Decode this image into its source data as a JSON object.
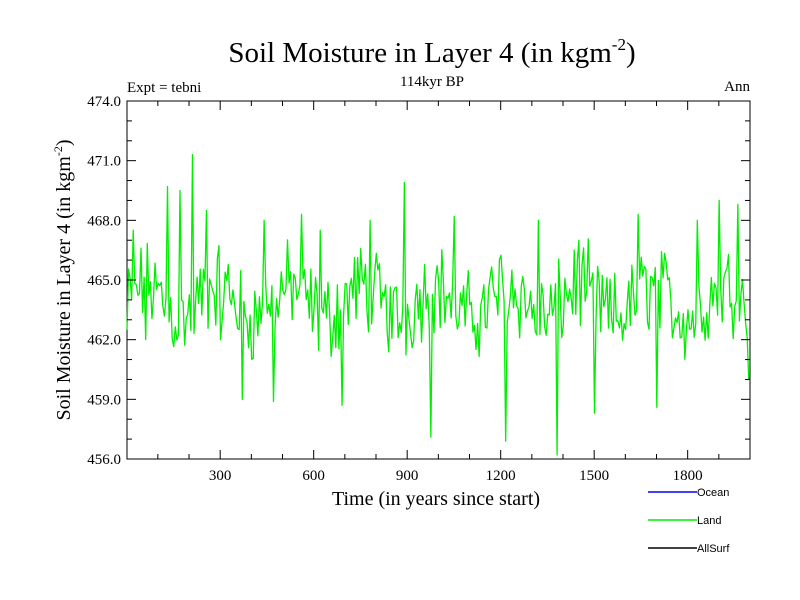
{
  "chart_data": {
    "type": "line",
    "title_main": "Soil Moisture in Layer 4 (in kgm",
    "title_sup": "-2",
    "title_close": ")",
    "subtitle": "114kyr BP",
    "left_label": "Expt = tebni",
    "right_label": "Ann",
    "xlabel": "Time (in years since start)",
    "ylabel_main": "Soil Moisture in Layer 4 (in kgm",
    "ylabel_sup": "-2",
    "ylabel_close": ")",
    "xlim": [
      1,
      2000
    ],
    "ylim": [
      456.0,
      474.0
    ],
    "x_ticks": [
      300,
      600,
      900,
      1200,
      1500,
      1800
    ],
    "x_tick_labels": [
      "300",
      "600",
      "900",
      "1200",
      "1500",
      "1800"
    ],
    "y_ticks": [
      456.0,
      459.0,
      462.0,
      465.0,
      468.0,
      471.0,
      474.0
    ],
    "y_tick_labels": [
      "456.0",
      "459.0",
      "462.0",
      "465.0",
      "468.0",
      "471.0",
      "474.0"
    ],
    "legend": [
      {
        "name": "Ocean",
        "color": "#0000ff"
      },
      {
        "name": "Land",
        "color": "#00ee00"
      },
      {
        "name": "AllSurf",
        "color": "#000000"
      }
    ],
    "series": [
      {
        "name": "Land",
        "color": "#00ee00",
        "generated": true,
        "x_start": 1,
        "x_step": 5,
        "mean": 463.9,
        "anchors": [
          [
            1,
            462.5
          ],
          [
            20,
            467.5
          ],
          [
            60,
            462.0
          ],
          [
            130,
            469.7
          ],
          [
            170,
            469.5
          ],
          [
            212,
            471.3
          ],
          [
            255,
            468.5
          ],
          [
            300,
            462.0
          ],
          [
            370,
            459.0
          ],
          [
            440,
            468.0
          ],
          [
            470,
            458.9
          ],
          [
            560,
            468.3
          ],
          [
            620,
            467.5
          ],
          [
            690,
            458.7
          ],
          [
            780,
            468.0
          ],
          [
            893,
            469.9
          ],
          [
            978,
            457.1
          ],
          [
            1050,
            468.2
          ],
          [
            1217,
            456.9
          ],
          [
            1320,
            468.0
          ],
          [
            1382,
            456.2
          ],
          [
            1450,
            467.0
          ],
          [
            1500,
            458.3
          ],
          [
            1640,
            468.3
          ],
          [
            1700,
            458.6
          ],
          [
            1830,
            468.0
          ],
          [
            1900,
            469.0
          ],
          [
            1960,
            468.8
          ],
          [
            2000,
            460.0
          ]
        ]
      }
    ]
  }
}
